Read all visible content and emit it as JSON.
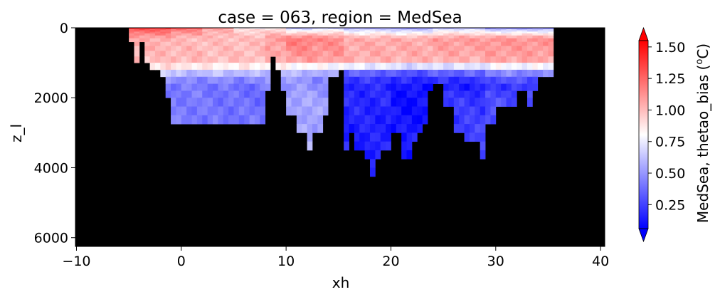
{
  "chart_data": {
    "type": "heatmap",
    "title": "case = 063, region = MedSea",
    "xlabel": "xh",
    "ylabel": "z_l",
    "x_ticks": [
      "−10",
      "0",
      "10",
      "20",
      "30",
      "40"
    ],
    "y_ticks": [
      "0",
      "2000",
      "4000",
      "6000"
    ],
    "xlim": [
      -10.1,
      40.4
    ],
    "ylim": [
      6250,
      0
    ],
    "y_inverted": true,
    "colorbar": {
      "label": "MedSea, thetao_bias (°C)",
      "label_base": "MedSea, thetao_bias (",
      "label_sup": "o",
      "label_end": "C)",
      "range": [
        0.06,
        1.55
      ],
      "ticks": [
        "0.25",
        "0.50",
        "0.75",
        "1.00",
        "1.25",
        "1.50"
      ],
      "extend": "both",
      "colormap": "bwr"
    },
    "missing_color": "#000000",
    "column_width_deg": 0.5,
    "levels": [
      {
        "z": 10,
        "top": 0,
        "bottom": 20
      },
      {
        "z": 30,
        "top": 20,
        "bottom": 40
      },
      {
        "z": 55,
        "top": 40,
        "bottom": 70
      },
      {
        "z": 90,
        "top": 70,
        "bottom": 110
      },
      {
        "z": 135,
        "top": 110,
        "bottom": 160
      },
      {
        "z": 190,
        "top": 160,
        "bottom": 220
      },
      {
        "z": 260,
        "top": 220,
        "bottom": 300
      },
      {
        "z": 350,
        "top": 300,
        "bottom": 400
      },
      {
        "z": 460,
        "top": 400,
        "bottom": 520
      },
      {
        "z": 590,
        "top": 520,
        "bottom": 660
      },
      {
        "z": 740,
        "top": 660,
        "bottom": 820
      },
      {
        "z": 910,
        "top": 820,
        "bottom": 1000
      },
      {
        "z": 1100,
        "top": 1000,
        "bottom": 1200
      },
      {
        "z": 1300,
        "top": 1200,
        "bottom": 1400
      },
      {
        "z": 1500,
        "top": 1400,
        "bottom": 1600
      },
      {
        "z": 1700,
        "top": 1600,
        "bottom": 1800
      },
      {
        "z": 1900,
        "top": 1800,
        "bottom": 2000
      },
      {
        "z": 2125,
        "top": 2000,
        "bottom": 2250
      },
      {
        "z": 2375,
        "top": 2250,
        "bottom": 2500
      },
      {
        "z": 2625,
        "top": 2500,
        "bottom": 2750
      },
      {
        "z": 2875,
        "top": 2750,
        "bottom": 3000
      },
      {
        "z": 3125,
        "top": 3000,
        "bottom": 3250
      },
      {
        "z": 3375,
        "top": 3250,
        "bottom": 3500
      },
      {
        "z": 3625,
        "top": 3500,
        "bottom": 3750
      },
      {
        "z": 3875,
        "top": 3750,
        "bottom": 4000
      },
      {
        "z": 4125,
        "top": 4000,
        "bottom": 4250
      }
    ],
    "bathymetry_segments": [
      {
        "x0": -5.0,
        "x1": -4.5,
        "depth": 500
      },
      {
        "x0": -4.5,
        "x1": -4.0,
        "depth": 1000
      },
      {
        "x0": -4.0,
        "x1": -3.5,
        "depth": 500
      },
      {
        "x0": -3.5,
        "x1": -3.0,
        "depth": 1000
      },
      {
        "x0": -3.0,
        "x1": -2.0,
        "depth": 1200
      },
      {
        "x0": -2.0,
        "x1": -1.5,
        "depth": 1400
      },
      {
        "x0": -1.5,
        "x1": -1.0,
        "depth": 2000
      },
      {
        "x0": -1.0,
        "x1": 8.0,
        "depth": 2750
      },
      {
        "x0": 8.0,
        "x1": 8.5,
        "depth": 1800
      },
      {
        "x0": 8.5,
        "x1": 9.0,
        "depth": 900
      },
      {
        "x0": 9.0,
        "x1": 9.5,
        "depth": 1200
      },
      {
        "x0": 9.5,
        "x1": 10.0,
        "depth": 1800
      },
      {
        "x0": 10.0,
        "x1": 11.0,
        "depth": 2500
      },
      {
        "x0": 11.0,
        "x1": 12.0,
        "depth": 3200
      },
      {
        "x0": 12.0,
        "x1": 12.5,
        "depth": 3700
      },
      {
        "x0": 12.5,
        "x1": 13.0,
        "depth": 3200
      },
      {
        "x0": 13.0,
        "x1": 13.5,
        "depth": 3000
      },
      {
        "x0": 13.5,
        "x1": 14.0,
        "depth": 2700
      },
      {
        "x0": 14.0,
        "x1": 15.0,
        "depth": 1400
      },
      {
        "x0": 15.0,
        "x1": 15.5,
        "depth": 1200
      },
      {
        "x0": 15.5,
        "x1": 16.0,
        "depth": 3700
      },
      {
        "x0": 16.0,
        "x1": 16.5,
        "depth": 3200
      },
      {
        "x0": 16.5,
        "x1": 17.5,
        "depth": 3500
      },
      {
        "x0": 17.5,
        "x1": 18.0,
        "depth": 3750
      },
      {
        "x0": 18.0,
        "x1": 18.5,
        "depth": 4250
      },
      {
        "x0": 18.5,
        "x1": 19.0,
        "depth": 3750
      },
      {
        "x0": 19.0,
        "x1": 20.0,
        "depth": 3500
      },
      {
        "x0": 20.0,
        "x1": 21.0,
        "depth": 3000
      },
      {
        "x0": 21.0,
        "x1": 22.0,
        "depth": 3750
      },
      {
        "x0": 22.0,
        "x1": 22.5,
        "depth": 3250
      },
      {
        "x0": 22.5,
        "x1": 23.0,
        "depth": 3000
      },
      {
        "x0": 23.0,
        "x1": 23.5,
        "depth": 2750
      },
      {
        "x0": 23.5,
        "x1": 24.0,
        "depth": 1800
      },
      {
        "x0": 24.0,
        "x1": 25.0,
        "depth": 1600
      },
      {
        "x0": 25.0,
        "x1": 26.0,
        "depth": 2250
      },
      {
        "x0": 26.0,
        "x1": 27.0,
        "depth": 3000
      },
      {
        "x0": 27.0,
        "x1": 28.5,
        "depth": 3250
      },
      {
        "x0": 28.5,
        "x1": 29.0,
        "depth": 3750
      },
      {
        "x0": 29.0,
        "x1": 30.0,
        "depth": 2750
      },
      {
        "x0": 30.0,
        "x1": 32.0,
        "depth": 2250
      },
      {
        "x0": 32.0,
        "x1": 33.0,
        "depth": 1800
      },
      {
        "x0": 33.0,
        "x1": 33.5,
        "depth": 2250
      },
      {
        "x0": 33.5,
        "x1": 34.0,
        "depth": 1800
      },
      {
        "x0": 34.0,
        "x1": 35.5,
        "depth": 1400
      }
    ],
    "bias_bands": [
      {
        "x0": -5.0,
        "x1": -1.0,
        "profile": [
          [
            0,
            1.5
          ],
          [
            40,
            1.3
          ],
          [
            300,
            1.05
          ],
          [
            900,
            1.0
          ],
          [
            1100,
            0.9
          ],
          [
            1300,
            0.7
          ],
          [
            1500,
            0.55
          ],
          [
            1700,
            0.42
          ],
          [
            2000,
            0.4
          ],
          [
            2750,
            0.4
          ]
        ]
      },
      {
        "x0": -1.0,
        "x1": 2.0,
        "profile": [
          [
            0,
            1.45
          ],
          [
            40,
            1.2
          ],
          [
            300,
            1.0
          ],
          [
            900,
            1.02
          ],
          [
            1100,
            0.88
          ],
          [
            1300,
            0.6
          ],
          [
            1500,
            0.45
          ],
          [
            1700,
            0.42
          ],
          [
            2000,
            0.42
          ],
          [
            2750,
            0.42
          ]
        ]
      },
      {
        "x0": 2.0,
        "x1": 5.0,
        "profile": [
          [
            0,
            1.2
          ],
          [
            40,
            1.05
          ],
          [
            300,
            1.0
          ],
          [
            900,
            1.0
          ],
          [
            1100,
            0.85
          ],
          [
            1300,
            0.62
          ],
          [
            1500,
            0.46
          ],
          [
            1700,
            0.4
          ],
          [
            2000,
            0.4
          ],
          [
            2750,
            0.4
          ]
        ]
      },
      {
        "x0": 5.0,
        "x1": 8.0,
        "profile": [
          [
            0,
            0.7
          ],
          [
            40,
            0.9
          ],
          [
            300,
            1.0
          ],
          [
            900,
            1.0
          ],
          [
            1100,
            0.85
          ],
          [
            1300,
            0.6
          ],
          [
            1500,
            0.45
          ],
          [
            1700,
            0.38
          ],
          [
            2000,
            0.38
          ],
          [
            2750,
            0.4
          ]
        ]
      },
      {
        "x0": 8.0,
        "x1": 10.0,
        "profile": [
          [
            0,
            0.8
          ],
          [
            40,
            0.9
          ],
          [
            300,
            1.1
          ],
          [
            900,
            1.05
          ],
          [
            1100,
            0.82
          ],
          [
            1300,
            0.62
          ],
          [
            1500,
            0.5
          ],
          [
            1700,
            0.45
          ],
          [
            2000,
            0.45
          ],
          [
            2750,
            0.45
          ]
        ]
      },
      {
        "x0": 10.0,
        "x1": 12.5,
        "profile": [
          [
            0,
            0.45
          ],
          [
            40,
            0.7
          ],
          [
            300,
            1.2
          ],
          [
            900,
            1.1
          ],
          [
            1100,
            0.82
          ],
          [
            1300,
            0.6
          ],
          [
            1500,
            0.5
          ],
          [
            1700,
            0.5
          ],
          [
            2000,
            0.55
          ],
          [
            3000,
            0.55
          ],
          [
            3700,
            0.55
          ]
        ]
      },
      {
        "x0": 12.5,
        "x1": 15.5,
        "profile": [
          [
            0,
            0.5
          ],
          [
            40,
            0.75
          ],
          [
            300,
            1.15
          ],
          [
            900,
            1.1
          ],
          [
            1100,
            0.8
          ],
          [
            1300,
            0.55
          ],
          [
            1500,
            0.45
          ],
          [
            1700,
            0.48
          ],
          [
            2000,
            0.52
          ],
          [
            3000,
            0.55
          ]
        ]
      },
      {
        "x0": 15.5,
        "x1": 20.0,
        "profile": [
          [
            0,
            0.4
          ],
          [
            40,
            0.65
          ],
          [
            300,
            1.05
          ],
          [
            900,
            1.05
          ],
          [
            1100,
            0.75
          ],
          [
            1300,
            0.35
          ],
          [
            1500,
            0.22
          ],
          [
            1700,
            0.18
          ],
          [
            2000,
            0.18
          ],
          [
            3000,
            0.15
          ],
          [
            4250,
            0.18
          ]
        ]
      },
      {
        "x0": 20.0,
        "x1": 24.0,
        "profile": [
          [
            0,
            0.35
          ],
          [
            40,
            0.6
          ],
          [
            300,
            1.05
          ],
          [
            900,
            1.05
          ],
          [
            1100,
            0.7
          ],
          [
            1300,
            0.3
          ],
          [
            1500,
            0.18
          ],
          [
            1700,
            0.12
          ],
          [
            2000,
            0.1
          ],
          [
            3000,
            0.12
          ],
          [
            3750,
            0.15
          ]
        ]
      },
      {
        "x0": 24.0,
        "x1": 29.0,
        "profile": [
          [
            0,
            0.45
          ],
          [
            40,
            0.7
          ],
          [
            300,
            1.1
          ],
          [
            900,
            1.05
          ],
          [
            1100,
            0.72
          ],
          [
            1300,
            0.35
          ],
          [
            1500,
            0.2
          ],
          [
            1700,
            0.15
          ],
          [
            2000,
            0.22
          ],
          [
            3000,
            0.25
          ],
          [
            3750,
            0.28
          ]
        ]
      },
      {
        "x0": 29.0,
        "x1": 35.5,
        "profile": [
          [
            0,
            0.3
          ],
          [
            40,
            0.6
          ],
          [
            300,
            1.12
          ],
          [
            900,
            1.08
          ],
          [
            1100,
            0.78
          ],
          [
            1300,
            0.45
          ],
          [
            1500,
            0.3
          ],
          [
            1700,
            0.22
          ],
          [
            2000,
            0.28
          ],
          [
            2750,
            0.3
          ]
        ]
      }
    ]
  }
}
